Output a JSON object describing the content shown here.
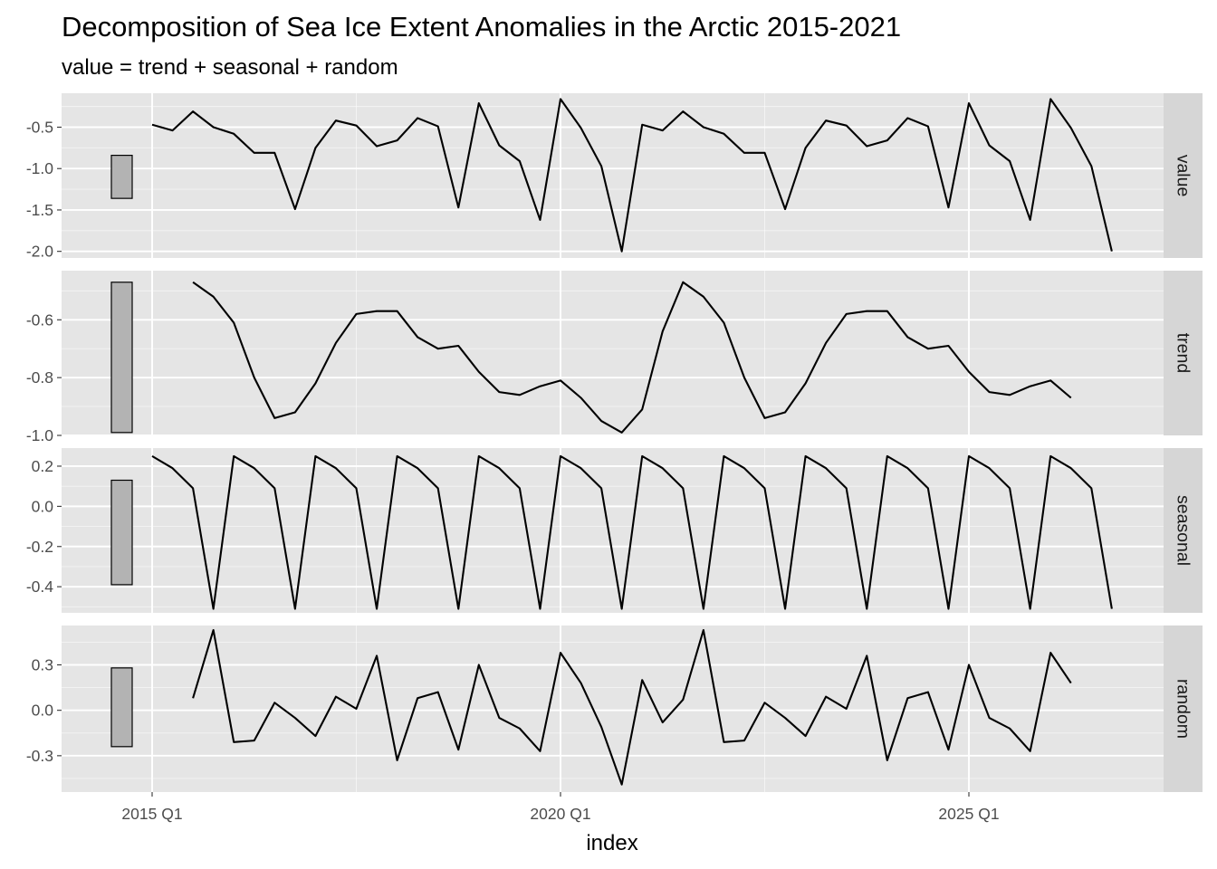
{
  "chart_data": {
    "type": "line",
    "title": "Decomposition of Sea Ice Extent Anomalies in the Arctic 2015-2021",
    "subtitle": "value = trend + seasonal + random",
    "xlabel": "index",
    "x_ticks": [
      "2015 Q1",
      "2020 Q1",
      "2025 Q1"
    ],
    "x_start": "2015 Q1",
    "grid": true,
    "legend": "none",
    "colors": {
      "panel_bg": "#e5e5e5",
      "grid_major": "#ffffff",
      "strip_bg": "#d6d6d6",
      "line": "#000000",
      "range_bar_fill": "#b3b3b3"
    },
    "panels": [
      {
        "name": "value",
        "ylim": [
          -2.08,
          -0.09
        ],
        "y_ticks": [
          -0.5,
          -1.0,
          -1.5,
          -2.0
        ],
        "y_tick_labels": [
          "-0.5",
          "-1.0",
          "-1.5",
          "-2.0"
        ],
        "range_bar": [
          -1.36,
          -0.84
        ],
        "values": [
          -0.47,
          -0.54,
          -0.31,
          -0.5,
          -0.58,
          -0.81,
          -0.81,
          -1.49,
          -0.75,
          -0.42,
          -0.48,
          -0.73,
          -0.66,
          -0.39,
          -0.49,
          -1.47,
          -0.21,
          -0.72,
          -0.91,
          -1.62,
          -0.16,
          -0.51,
          -0.97,
          -2.0,
          -0.47,
          -0.54,
          -0.31,
          -0.5,
          -0.58,
          -0.81,
          -0.81,
          -1.49,
          -0.75,
          -0.42,
          -0.48,
          -0.73,
          -0.66,
          -0.39,
          -0.49,
          -1.47,
          -0.21,
          -0.72,
          -0.91,
          -1.62,
          -0.16,
          -0.51,
          -0.97,
          -2.0
        ]
      },
      {
        "name": "trend",
        "ylim": [
          -1.0,
          -0.43
        ],
        "y_ticks": [
          -0.6,
          -0.8,
          -1.0
        ],
        "y_tick_labels": [
          "-0.6",
          "-0.8",
          "-1.0"
        ],
        "range_bar": [
          -0.99,
          -0.47
        ],
        "values": [
          null,
          null,
          -0.47,
          -0.52,
          -0.61,
          -0.8,
          -0.94,
          -0.92,
          -0.82,
          -0.68,
          -0.58,
          -0.57,
          -0.57,
          -0.66,
          -0.7,
          -0.69,
          -0.78,
          -0.85,
          -0.86,
          -0.83,
          -0.81,
          -0.87,
          -0.95,
          -0.99,
          -0.91,
          -0.64,
          -0.47,
          -0.52,
          -0.61,
          -0.8,
          -0.94,
          -0.92,
          -0.82,
          -0.68,
          -0.58,
          -0.57,
          -0.57,
          -0.66,
          -0.7,
          -0.69,
          -0.78,
          -0.85,
          -0.86,
          -0.83,
          -0.81,
          -0.87,
          null,
          null
        ]
      },
      {
        "name": "seasonal",
        "ylim": [
          -0.53,
          0.29
        ],
        "y_ticks": [
          0.2,
          0.0,
          -0.2,
          -0.4
        ],
        "y_tick_labels": [
          "0.2",
          "0.0",
          "-0.2",
          "-0.4"
        ],
        "range_bar": [
          -0.39,
          0.13
        ],
        "values": [
          0.25,
          0.19,
          0.09,
          -0.51,
          0.25,
          0.19,
          0.09,
          -0.51,
          0.25,
          0.19,
          0.09,
          -0.51,
          0.25,
          0.19,
          0.09,
          -0.51,
          0.25,
          0.19,
          0.09,
          -0.51,
          0.25,
          0.19,
          0.09,
          -0.51,
          0.25,
          0.19,
          0.09,
          -0.51,
          0.25,
          0.19,
          0.09,
          -0.51,
          0.25,
          0.19,
          0.09,
          -0.51,
          0.25,
          0.19,
          0.09,
          -0.51,
          0.25,
          0.19,
          0.09,
          -0.51,
          0.25,
          0.19,
          0.09,
          -0.51
        ]
      },
      {
        "name": "random",
        "ylim": [
          -0.54,
          0.56
        ],
        "y_ticks": [
          0.3,
          0.0,
          -0.3
        ],
        "y_tick_labels": [
          "0.3",
          "0.0",
          "-0.3"
        ],
        "range_bar": [
          -0.24,
          0.28
        ],
        "values": [
          null,
          null,
          0.08,
          0.53,
          -0.21,
          -0.2,
          0.05,
          -0.05,
          -0.17,
          0.09,
          0.01,
          0.36,
          -0.33,
          0.08,
          0.12,
          -0.26,
          0.3,
          -0.05,
          -0.12,
          -0.27,
          0.38,
          0.18,
          -0.11,
          -0.49,
          0.2,
          -0.08,
          0.07,
          0.53,
          -0.21,
          -0.2,
          0.05,
          -0.05,
          -0.17,
          0.09,
          0.01,
          0.36,
          -0.33,
          0.08,
          0.12,
          -0.26,
          0.3,
          -0.05,
          -0.12,
          -0.27,
          0.38,
          0.18,
          null,
          null
        ]
      }
    ]
  }
}
